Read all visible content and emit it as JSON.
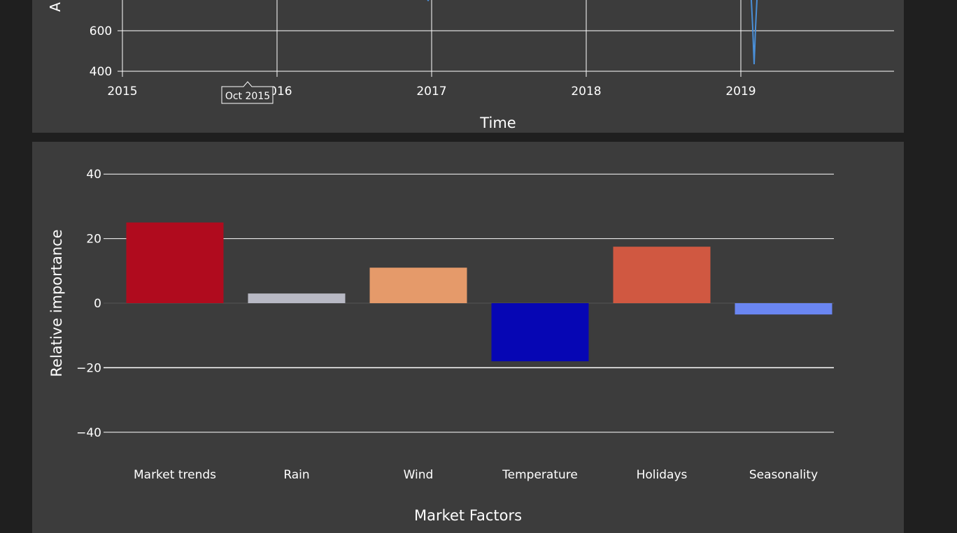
{
  "time_chart": {
    "xlabel": "Time",
    "ylabel": "A",
    "y_ticks": [
      400,
      600
    ],
    "x_ticks": [
      "2015",
      "2016",
      "2017",
      "2018",
      "2019"
    ],
    "hover_label": "Oct 2015",
    "line_color": "#4a8fd8"
  },
  "chart_data": {
    "type": "bar",
    "categories": [
      "Market trends",
      "Rain",
      "Wind",
      "Temperature",
      "Holidays",
      "Seasonality"
    ],
    "values": [
      25,
      3,
      11,
      -18,
      17.5,
      -3.5
    ],
    "colors": [
      "#b00b1e",
      "#b8b9c4",
      "#e59a6a",
      "#0606b4",
      "#d05841",
      "#6a86f2"
    ],
    "xlabel": "Market Factors",
    "ylabel": "Relative importance",
    "ylim": [
      -50,
      50
    ],
    "y_ticks": [
      40,
      20,
      0,
      -20,
      -40
    ],
    "y_tick_labels": [
      "40",
      "20",
      "0",
      "−20",
      "−40"
    ],
    "grid": true
  }
}
